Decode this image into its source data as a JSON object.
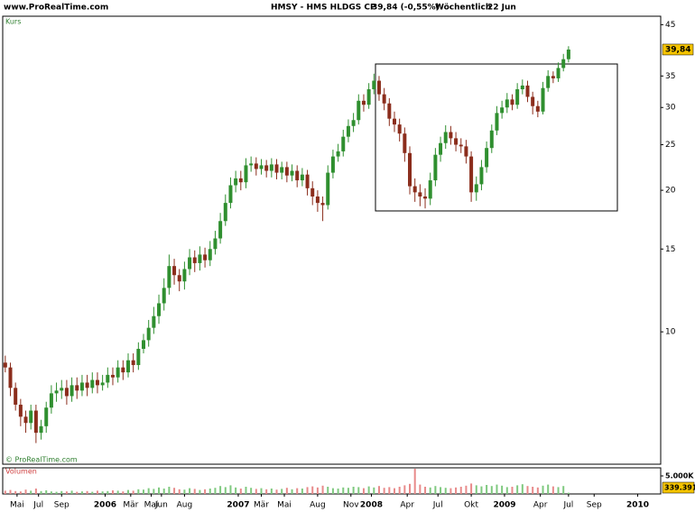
{
  "source": "www.ProRealTime.com",
  "chart_data": {
    "type": "candlestick",
    "title": "HMSY - HMS HLDGS CP",
    "quote": "39,84 (-0,55%)",
    "period": "Wöchentlich",
    "date": "22 Jun",
    "price_label": "Kurs",
    "volume_label": "Volumen",
    "copyright": "© ProRealTime.com",
    "log_scale": true,
    "up_color": "#2f8f2f",
    "down_color": "#8b2d1c",
    "volume_up_color": "#7fc97f",
    "volume_down_color": "#e88a8a",
    "xlim": [
      0,
      257
    ],
    "ylim": [
      5.23,
      46.9
    ],
    "y2lim": [
      0,
      7250000
    ],
    "yticks": [
      45,
      35,
      30,
      25,
      20,
      15,
      10
    ],
    "y2ticks": [
      {
        "value": 5000000,
        "label": "5.000K"
      }
    ],
    "xticks": [
      {
        "value": 5.6,
        "label": "Mai"
      },
      {
        "value": 14,
        "label": "Jul"
      },
      {
        "value": 23,
        "label": "Sep"
      },
      {
        "value": 40,
        "label": "2006"
      },
      {
        "value": 50,
        "label": "Mär"
      },
      {
        "value": 58,
        "label": "Mai"
      },
      {
        "value": 62,
        "label": "Jun"
      },
      {
        "value": 71,
        "label": "Aug"
      },
      {
        "value": 92,
        "label": "2007"
      },
      {
        "value": 101,
        "label": "Mär"
      },
      {
        "value": 110,
        "label": "Mai"
      },
      {
        "value": 123,
        "label": "Aug"
      },
      {
        "value": 136,
        "label": "Nov"
      },
      {
        "value": 144,
        "label": "2008"
      },
      {
        "value": 158,
        "label": "Apr"
      },
      {
        "value": 170,
        "label": "Jul"
      },
      {
        "value": 183,
        "label": "Okt"
      },
      {
        "value": 196,
        "label": "2009"
      },
      {
        "value": 210,
        "label": "Apr"
      },
      {
        "value": 221,
        "label": "Jul"
      },
      {
        "value": 231,
        "label": "Sep"
      },
      {
        "value": 248,
        "label": "2010"
      }
    ],
    "price_tag": {
      "value": 39.84,
      "label": "39,84"
    },
    "volume_tag": {
      "value": 339391,
      "label": "339.391"
    },
    "x": [
      1,
      3,
      5,
      7,
      9,
      11,
      13,
      15,
      17,
      19,
      21,
      23,
      25,
      27,
      29,
      31,
      33,
      35,
      37,
      39,
      41,
      43,
      45,
      47,
      49,
      51,
      53,
      55,
      57,
      59,
      61,
      63,
      65,
      67,
      69,
      71,
      73,
      75,
      77,
      79,
      81,
      83,
      85,
      87,
      89,
      91,
      93,
      95,
      97,
      99,
      101,
      103,
      105,
      107,
      109,
      111,
      113,
      115,
      117,
      119,
      121,
      123,
      125,
      127,
      129,
      131,
      133,
      135,
      137,
      139,
      141,
      143,
      145,
      147,
      149,
      151,
      153,
      155,
      157,
      159,
      161,
      163,
      165,
      167,
      169,
      171,
      173,
      175,
      177,
      179,
      181,
      183,
      185,
      187,
      189,
      191,
      193,
      195,
      197,
      199,
      201,
      203,
      205,
      207,
      209,
      211,
      213,
      215,
      217,
      219,
      221
    ],
    "open": [
      8.6,
      8.4,
      7.6,
      7.0,
      6.6,
      6.4,
      6.8,
      6.1,
      6.3,
      6.9,
      7.4,
      7.5,
      7.6,
      7.3,
      7.7,
      7.5,
      7.8,
      7.6,
      7.9,
      7.7,
      7.8,
      8.1,
      8.0,
      8.4,
      8.2,
      8.7,
      8.5,
      9.2,
      9.6,
      10.2,
      10.8,
      11.5,
      12.4,
      13.8,
      13.2,
      12.8,
      13.6,
      14.4,
      14.0,
      14.6,
      14.2,
      15.0,
      15.8,
      17.2,
      18.8,
      20.5,
      21.2,
      20.8,
      22.6,
      22.8,
      22.2,
      22.6,
      22.0,
      22.7,
      21.8,
      22.4,
      21.5,
      22.0,
      21.0,
      21.6,
      20.2,
      19.4,
      18.8,
      18.6,
      21.8,
      23.6,
      24.2,
      26.0,
      27.4,
      28.2,
      31.0,
      30.4,
      32.8,
      34.2,
      32.0,
      30.6,
      28.4,
      27.6,
      26.4,
      24.0,
      20.4,
      19.8,
      19.4,
      19.2,
      21.0,
      23.8,
      25.2,
      26.6,
      25.8,
      25.0,
      24.8,
      23.6,
      19.8,
      20.6,
      22.4,
      24.6,
      26.8,
      29.2,
      30.0,
      31.2,
      30.4,
      32.8,
      33.4,
      31.6,
      30.2,
      29.4,
      33.0,
      35.0,
      34.6,
      36.4,
      38.0
    ],
    "high": [
      8.9,
      8.6,
      7.8,
      7.2,
      6.8,
      7.0,
      7.0,
      6.5,
      7.1,
      7.7,
      7.8,
      7.9,
      7.9,
      8.0,
      8.0,
      8.1,
      8.1,
      8.2,
      8.2,
      8.1,
      8.4,
      8.4,
      8.7,
      8.7,
      9.0,
      9.0,
      9.5,
      9.9,
      10.6,
      11.3,
      12.0,
      13.0,
      14.6,
      14.3,
      13.6,
      14.1,
      15.0,
      14.9,
      15.2,
      15.1,
      15.6,
      16.4,
      17.9,
      19.6,
      21.3,
      22.0,
      22.0,
      23.4,
      23.6,
      23.5,
      23.3,
      23.2,
      23.4,
      23.3,
      23.0,
      23.0,
      22.7,
      22.6,
      22.3,
      22.1,
      20.9,
      20.0,
      19.4,
      22.6,
      24.4,
      25.1,
      26.9,
      28.3,
      29.2,
      32.0,
      32.0,
      33.8,
      35.4,
      35.0,
      33.0,
      31.4,
      29.4,
      28.4,
      27.2,
      24.8,
      21.2,
      20.6,
      20.2,
      21.8,
      24.6,
      26.0,
      27.5,
      27.4,
      26.6,
      25.8,
      25.6,
      24.2,
      21.4,
      23.2,
      25.4,
      27.6,
      30.2,
      31.0,
      32.2,
      32.0,
      33.8,
      34.4,
      34.2,
      32.4,
      31.0,
      34.0,
      36.0,
      35.8,
      37.4,
      39.0,
      40.5
    ],
    "low": [
      8.2,
      7.3,
      6.8,
      6.3,
      6.1,
      6.2,
      5.8,
      5.9,
      6.1,
      6.7,
      7.1,
      7.2,
      7.0,
      7.1,
      7.2,
      7.3,
      7.3,
      7.4,
      7.4,
      7.5,
      7.6,
      7.7,
      7.8,
      7.9,
      8.0,
      8.2,
      8.3,
      9.0,
      9.3,
      9.9,
      10.4,
      11.1,
      12.0,
      12.6,
      12.2,
      12.3,
      13.2,
      13.4,
      13.5,
      13.7,
      13.8,
      14.6,
      15.4,
      16.8,
      18.3,
      19.8,
      20.0,
      20.2,
      21.9,
      21.5,
      21.6,
      21.3,
      21.3,
      21.1,
      21.1,
      20.8,
      20.9,
      20.3,
      20.4,
      19.5,
      18.6,
      18.0,
      17.2,
      18.2,
      21.2,
      23.0,
      23.6,
      25.3,
      26.6,
      27.6,
      29.4,
      29.8,
      32.0,
      31.0,
      29.6,
      27.4,
      26.6,
      25.4,
      23.0,
      19.6,
      18.9,
      18.5,
      18.3,
      18.6,
      20.4,
      23.0,
      24.5,
      25.0,
      24.2,
      24.0,
      22.8,
      18.9,
      19.0,
      20.0,
      21.8,
      24.0,
      26.2,
      28.4,
      29.2,
      29.6,
      29.8,
      32.0,
      30.8,
      29.0,
      28.6,
      29.0,
      32.4,
      33.8,
      34.0,
      35.8,
      37.4
    ],
    "close": [
      8.4,
      7.6,
      7.0,
      6.6,
      6.4,
      6.8,
      6.1,
      6.3,
      6.9,
      7.4,
      7.5,
      7.6,
      7.3,
      7.7,
      7.5,
      7.8,
      7.6,
      7.9,
      7.7,
      7.8,
      8.1,
      8.0,
      8.4,
      8.2,
      8.7,
      8.5,
      9.2,
      9.6,
      10.2,
      10.8,
      11.5,
      12.4,
      13.8,
      13.2,
      12.8,
      13.6,
      14.4,
      14.0,
      14.6,
      14.2,
      15.0,
      15.8,
      17.2,
      18.8,
      20.5,
      21.2,
      20.8,
      22.6,
      22.8,
      22.2,
      22.6,
      22.0,
      22.7,
      21.8,
      22.4,
      21.5,
      22.0,
      21.0,
      21.6,
      20.2,
      19.4,
      18.8,
      18.6,
      21.8,
      23.6,
      24.2,
      26.0,
      27.4,
      28.2,
      31.0,
      30.4,
      32.8,
      34.2,
      32.0,
      30.6,
      28.4,
      27.6,
      26.4,
      24.0,
      20.4,
      19.8,
      19.4,
      19.2,
      21.0,
      23.8,
      25.2,
      26.6,
      25.8,
      25.0,
      24.8,
      23.6,
      19.8,
      20.6,
      22.4,
      24.6,
      26.8,
      29.2,
      30.0,
      31.2,
      30.4,
      32.8,
      33.4,
      31.6,
      30.2,
      29.4,
      33.0,
      35.0,
      34.6,
      36.4,
      38.0,
      39.84
    ],
    "volume": [
      900000,
      1100000,
      800000,
      700000,
      1200000,
      900000,
      1500000,
      800000,
      1000000,
      700000,
      600000,
      800000,
      700000,
      900000,
      600000,
      700000,
      800000,
      600000,
      900000,
      700000,
      800000,
      1000000,
      900000,
      700000,
      1100000,
      900000,
      1300000,
      1200000,
      1600000,
      1400000,
      1800000,
      1500000,
      2000000,
      1700000,
      1300000,
      1200000,
      1600000,
      1400000,
      1100000,
      1300000,
      1500000,
      1700000,
      2200000,
      1900000,
      2400000,
      1800000,
      1500000,
      2000000,
      1700000,
      1400000,
      1600000,
      1300000,
      1500000,
      1200000,
      1400000,
      1700000,
      1300000,
      1600000,
      1500000,
      1900000,
      2100000,
      1800000,
      2300000,
      2000000,
      1600000,
      1500000,
      1800000,
      1700000,
      2000000,
      1900000,
      1600000,
      2100000,
      1800000,
      2200000,
      1700000,
      1900000,
      1600000,
      2000000,
      2400000,
      2800000,
      7000000,
      2600000,
      2000000,
      1800000,
      2200000,
      1900000,
      1700000,
      1600000,
      1800000,
      2000000,
      2300000,
      2900000,
      2400000,
      2100000,
      2500000,
      2200000,
      2600000,
      2300000,
      1900000,
      2000000,
      2400000,
      2700000,
      2200000,
      2000000,
      1800000,
      2300000,
      2600000,
      2100000,
      1900000,
      2200000,
      339391
    ]
  }
}
